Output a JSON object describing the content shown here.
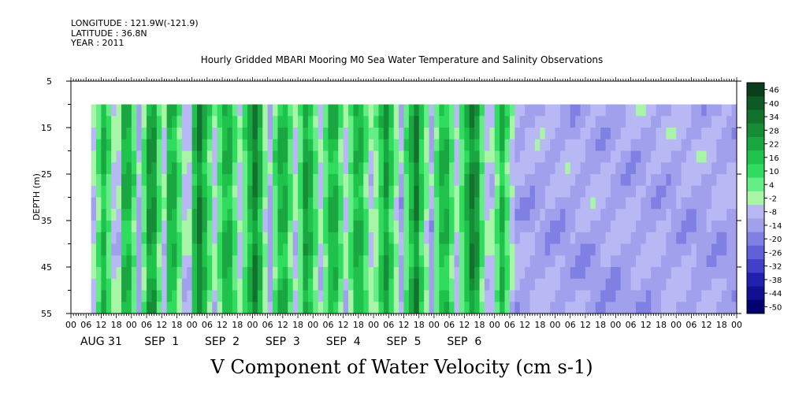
{
  "header": {
    "longitude": "LONGITUDE : 121.9W(-121.9)",
    "latitude": "LATITUDE : 36.8N",
    "year": "YEAR : 2011"
  },
  "chart_data": {
    "type": "heatmap",
    "title": "Hourly Gridded MBARI Mooring M0 Sea Water Temperature and Salinity Observations",
    "xlabel": "V Component of Water Velocity (cm s-1)",
    "ylabel": "DEPTH (m)",
    "ylim": [
      55,
      5
    ],
    "y_ticks": [
      5,
      15,
      25,
      35,
      45,
      55
    ],
    "x_hour_ticks": [
      "00",
      "06",
      "12",
      "18",
      "00",
      "06",
      "12",
      "18",
      "00",
      "06",
      "12",
      "18",
      "00",
      "06",
      "12",
      "18",
      "00",
      "06",
      "12",
      "18",
      "00",
      "06",
      "12",
      "18",
      "00",
      "06",
      "12",
      "18",
      "00",
      "06",
      "12",
      "18",
      "00",
      "06",
      "12",
      "18",
      "00",
      "06",
      "12",
      "18",
      "00",
      "06",
      "12",
      "18",
      "00"
    ],
    "x_day_labels": [
      "AUG 31",
      "SEP  1",
      "SEP  2",
      "SEP  3",
      "SEP  4",
      "SEP  5",
      "SEP  6"
    ],
    "data_depth_range": [
      10,
      55
    ],
    "data_time_start": "AUG 31 08",
    "colorbar": {
      "levels": [
        "46",
        "40",
        "34",
        "28",
        "22",
        "16",
        "10",
        "4",
        "-2",
        "-8",
        "-14",
        "-20",
        "-26",
        "-32",
        "-38",
        "-44",
        "-50"
      ],
      "colors": [
        "#0a3d1a",
        "#0e5a24",
        "#12722d",
        "#168c36",
        "#1aa640",
        "#1fc24a",
        "#2fdc5e",
        "#66ee86",
        "#a8f5a8",
        "#b8b8f4",
        "#a0a0ec",
        "#8080e4",
        "#6060d8",
        "#4040c8",
        "#2020b0",
        "#101090",
        "#000070"
      ]
    },
    "v_profile_by_hour": [
      -8,
      -2,
      4,
      10,
      16,
      10,
      4,
      -2,
      -8,
      -14,
      -8,
      4,
      16,
      22,
      16,
      10,
      4,
      -8,
      -14,
      -8,
      4,
      16,
      22,
      28,
      22,
      10,
      4,
      -2,
      -8,
      4,
      16,
      22,
      16,
      10,
      4,
      -2,
      -8,
      -14,
      -8,
      4,
      16,
      22,
      28,
      22,
      16,
      10,
      4,
      -2,
      -8,
      -2,
      4,
      10,
      16,
      22,
      16,
      10,
      4,
      -2,
      -8,
      -8,
      4,
      10,
      16,
      22,
      28,
      22,
      16,
      4,
      -2,
      -8,
      -14,
      -8,
      4,
      10,
      16,
      22,
      16,
      10,
      4,
      -2,
      -8,
      -2,
      4,
      16,
      22,
      28,
      16,
      10,
      4,
      -2,
      -8,
      -2,
      4,
      10,
      16,
      22,
      16,
      10,
      4,
      -2,
      -8,
      -2,
      4,
      10,
      16,
      22,
      16,
      10,
      4,
      -2,
      -8,
      -8,
      -2,
      4,
      10,
      16,
      22,
      16,
      10,
      4,
      -2,
      -8,
      -14,
      -8,
      4,
      10,
      16,
      22,
      28,
      22,
      10,
      4,
      -2,
      -8,
      -14,
      -8,
      4,
      10,
      16,
      22,
      16,
      10,
      4,
      -2,
      -8,
      -8,
      4,
      10,
      16,
      22,
      28,
      34,
      22,
      16,
      4,
      -2,
      -8,
      -14,
      -8,
      -2,
      4,
      10,
      16,
      10,
      4,
      -2,
      -8,
      -14
    ]
  }
}
